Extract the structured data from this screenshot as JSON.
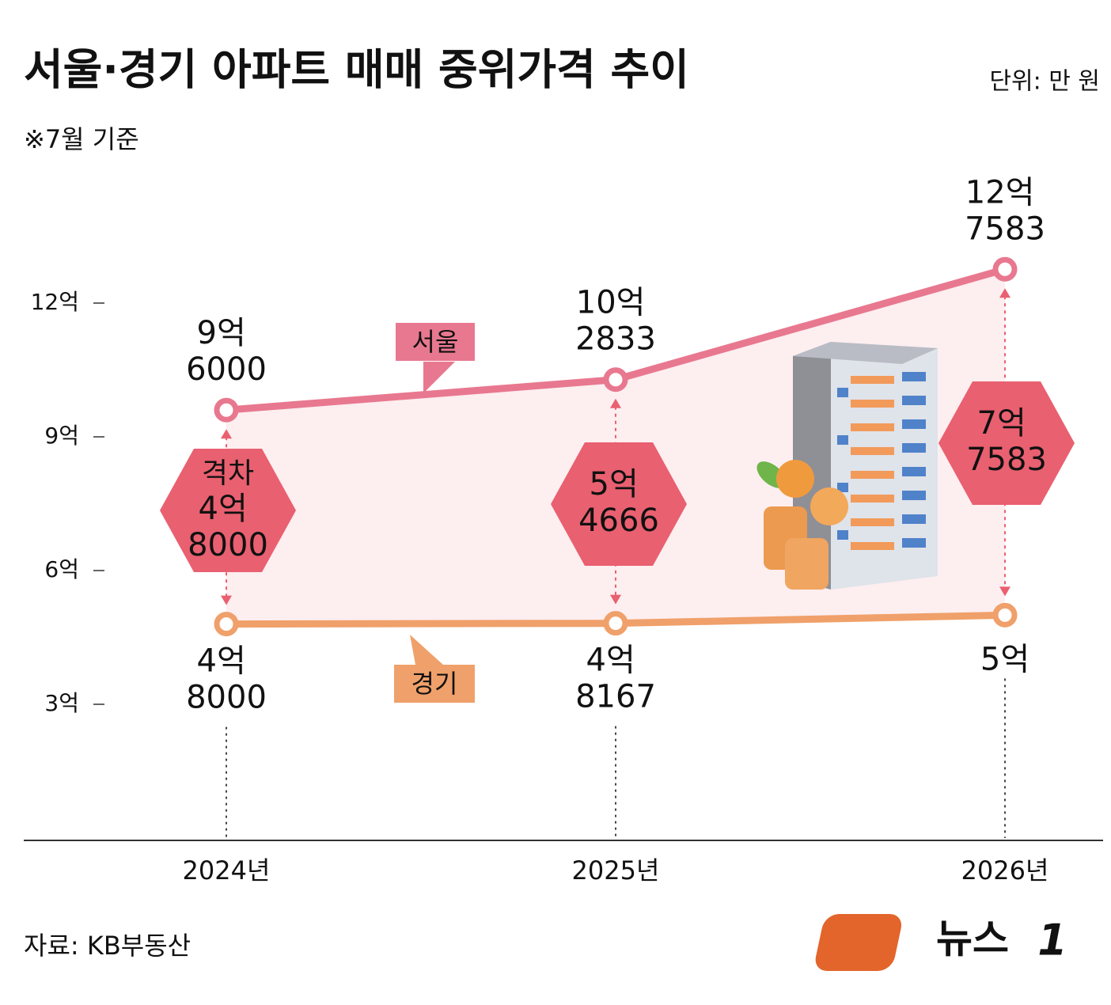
{
  "chart_data": {
    "type": "line",
    "title": "서울·경기 아파트 매매 중위가격 추이",
    "subtitle": "※7월 기준",
    "unit": "단위: 만 원",
    "source": "자료: KB부동산",
    "logo_text": "뉴스",
    "logo_badge": "1",
    "categories": [
      "2024년",
      "2025년",
      "2026년"
    ],
    "series": [
      {
        "name": "서울",
        "color": "#e8788f",
        "values": [
          9.6,
          10.2833,
          12.7583
        ],
        "value_labels": [
          "9억 6000",
          "10억 2833",
          "12억 7583"
        ]
      },
      {
        "name": "경기",
        "color": "#f0a06a",
        "values": [
          4.8,
          4.8167,
          5
        ],
        "value_labels": [
          "4억 8000",
          "4억 8167",
          "5억"
        ]
      }
    ],
    "gap_title": "격차",
    "gaps": {
      "color": "#e96070",
      "values": [
        4.8,
        5.4666,
        7.7583
      ],
      "value_labels": [
        "4억 8000",
        "5억 4666",
        "7억 7583"
      ]
    },
    "ylim": [
      0,
      15
    ],
    "yticks": [
      {
        "value": 3,
        "label": "3억"
      },
      {
        "value": 6,
        "label": "6억"
      },
      {
        "value": 9,
        "label": "9억"
      },
      {
        "value": 12,
        "label": "12억"
      }
    ],
    "grid": false
  }
}
